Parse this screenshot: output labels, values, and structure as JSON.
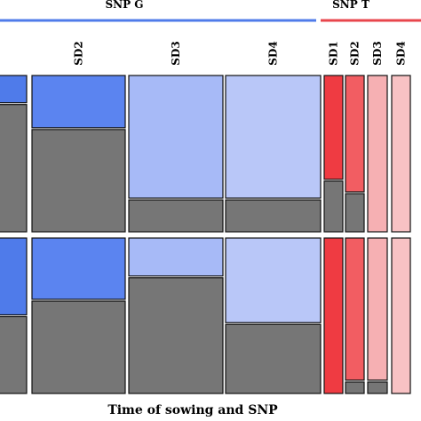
{
  "chart_data": {
    "type": "mosaic",
    "xlabel": "Time of sowing and SNP",
    "groups": [
      {
        "name": "SNP G",
        "color": "#4f7bea",
        "categories": [
          {
            "label": "",
            "fill_top": "#4f7bea",
            "split": [
              0.18,
              0.5
            ]
          },
          {
            "label": "SD2",
            "fill_top": "#5b84f0",
            "split": [
              0.34,
              0.4
            ]
          },
          {
            "label": "SD3",
            "fill_top": "#a7baf7",
            "split": [
              0.79,
              0.25
            ]
          },
          {
            "label": "SD4",
            "fill_top": "#b9c7f8",
            "split": [
              0.79,
              0.55
            ]
          }
        ]
      },
      {
        "name": "SNP T",
        "color": "#e8464c",
        "categories": [
          {
            "label": "SD1",
            "fill_top": "#ef3b42",
            "split": [
              0.67,
              1.0
            ]
          },
          {
            "label": "SD2",
            "fill_top": "#f25d62",
            "split": [
              0.75,
              0.92
            ]
          },
          {
            "label": "SD3",
            "fill_top": "#f6b0b3",
            "split": [
              1.0,
              0.92
            ]
          },
          {
            "label": "SD4",
            "fill_top": "#f8c2c4",
            "split": [
              1.0,
              1.0
            ]
          }
        ]
      }
    ],
    "rows": 2,
    "bottom_fill": "#767676"
  }
}
